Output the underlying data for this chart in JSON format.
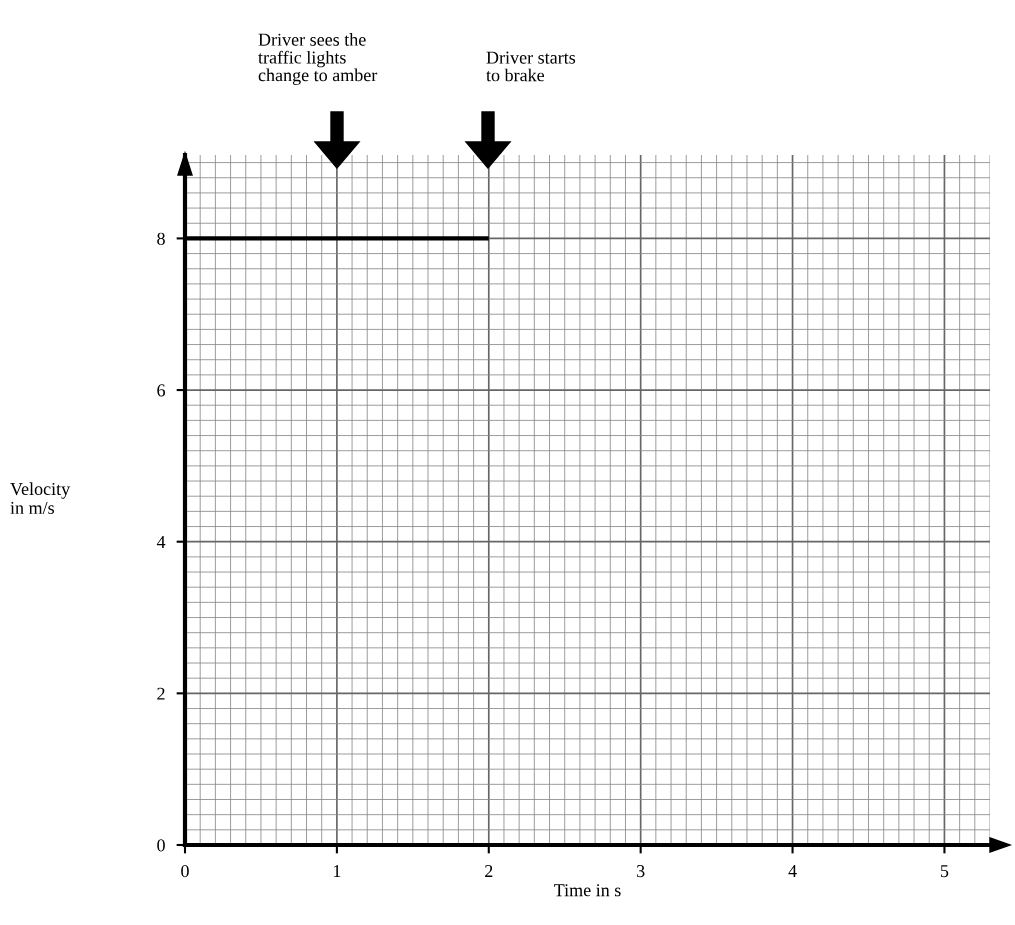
{
  "chart_data": {
    "type": "line",
    "xlabel": "Time in s",
    "ylabel": "Velocity\nin m/s",
    "x": [
      0,
      2
    ],
    "series": [
      {
        "color": "#000000",
        "values": [
          8,
          8
        ]
      }
    ],
    "xlim": [
      0,
      5.3
    ],
    "ylim": [
      0,
      9.1
    ],
    "xticks": [
      0,
      1,
      2,
      3,
      4,
      5
    ],
    "yticks": [
      0,
      2,
      4,
      6,
      8
    ],
    "grid": true,
    "marker": "none",
    "line_style": "solid",
    "annotations": [
      "Driver sees the\ntraffic lights\nchange to amber",
      "Driver starts\nto brake"
    ]
  }
}
